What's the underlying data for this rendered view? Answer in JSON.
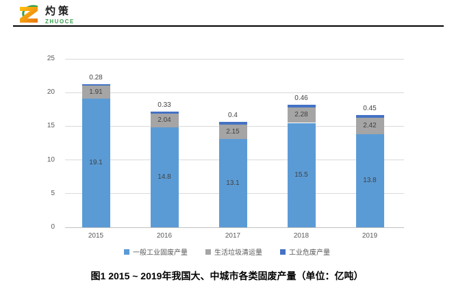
{
  "logo": {
    "name_zh": "灼策",
    "name_en": "ZHUOCE"
  },
  "caption": "图1   2015 ~ 2019年我国大、中城市各类固废产量（单位：亿吨）",
  "colors": {
    "background": "#FFFFFF",
    "divider": "#000000",
    "gridline": "#D9D9D9",
    "axis_line": "#BFBFBF",
    "tick_label": "#595959",
    "data_label": "#404040",
    "caption_text": "#000000",
    "logo_green": "#37A04C",
    "logo_orange_start": "#FFC20E",
    "logo_orange_end": "#E87511",
    "series_blue": "#5B9BD5",
    "series_gray": "#A5A5A5",
    "series_darkblue": "#4472C4"
  },
  "chart_data": {
    "type": "bar",
    "stacked": true,
    "title": "",
    "xlabel": "",
    "ylabel": "",
    "categories": [
      "2015",
      "2016",
      "2017",
      "2018",
      "2019"
    ],
    "series": [
      {
        "name": "一般工业固废产量",
        "color": "#5B9BD5",
        "values": [
          19.1,
          14.8,
          13.1,
          15.5,
          13.8
        ],
        "labels": [
          "19.1",
          "14.8",
          "13.1",
          "15.5",
          "13.8"
        ],
        "label_position": "inside"
      },
      {
        "name": "生活垃圾清运量",
        "color": "#A5A5A5",
        "values": [
          1.91,
          2.04,
          2.15,
          2.28,
          2.42
        ],
        "labels": [
          "1.91",
          "2.04",
          "2.15",
          "2.28",
          "2.42"
        ],
        "label_position": "inside"
      },
      {
        "name": "工业危废产量",
        "color": "#4472C4",
        "values": [
          0.28,
          0.33,
          0.4,
          0.46,
          0.45
        ],
        "labels": [
          "0.28",
          "0.33",
          "0.4",
          "0.46",
          "0.45"
        ],
        "label_position": "outside-top"
      }
    ],
    "ylim": [
      0,
      25
    ],
    "yticks": [
      0,
      5,
      10,
      15,
      20,
      25
    ],
    "ytick_labels": [
      "0",
      "5",
      "10",
      "15",
      "20",
      "25"
    ],
    "grid": true,
    "legend_position": "bottom"
  }
}
